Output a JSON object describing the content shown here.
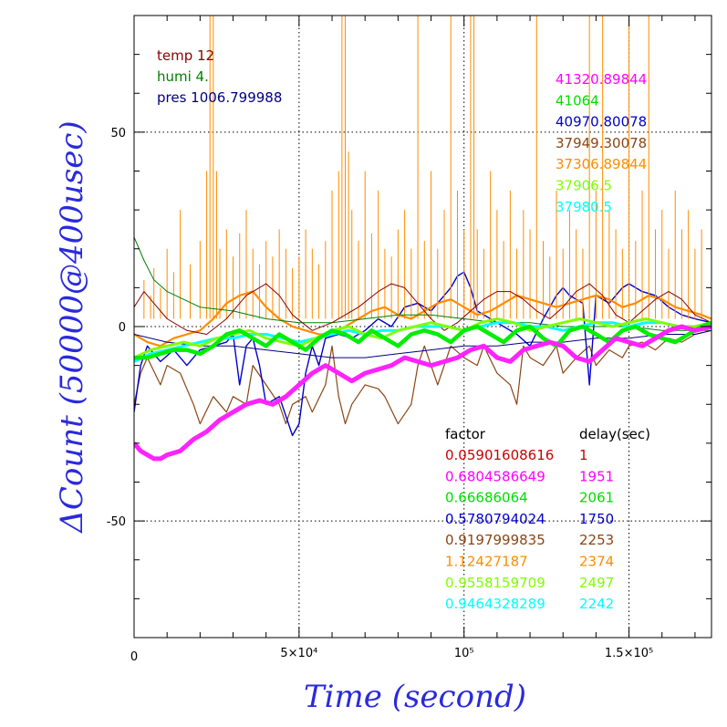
{
  "chart_data": {
    "type": "line",
    "xlabel": "Time (second)",
    "ylabel": "ΔCount (50000@400usec)",
    "xlim": [
      0,
      175000
    ],
    "ylim": [
      -80,
      80
    ],
    "grid": true,
    "x_ticks": [
      {
        "value": 0,
        "label": "0"
      },
      {
        "value": 50000,
        "label": "5×10⁴"
      },
      {
        "value": 100000,
        "label": "10⁵"
      },
      {
        "value": 150000,
        "label": "1.5×10⁵"
      }
    ],
    "y_ticks": [
      {
        "value": -50,
        "label": "-50"
      },
      {
        "value": 0,
        "label": "0"
      },
      {
        "value": 50,
        "label": "50"
      }
    ],
    "env_legend": [
      {
        "text": "temp 12",
        "color": "#8b0000"
      },
      {
        "text": "humi 4.",
        "color": "#008000"
      },
      {
        "text": "pres 1006.799988",
        "color": "#000080"
      }
    ],
    "count_legend": [
      {
        "text": "41320.89844",
        "color": "#ff00ff"
      },
      {
        "text": "41064",
        "color": "#00dd00"
      },
      {
        "text": "40970.80078",
        "color": "#0000cc"
      },
      {
        "text": "37949.30078",
        "color": "#8b4513"
      },
      {
        "text": "37306.89844",
        "color": "#ff8c00"
      },
      {
        "text": "37906.5",
        "color": "#7fff00"
      },
      {
        "text": "37980.5",
        "color": "#00ffff"
      }
    ],
    "factor_table": {
      "header_factor": "factor",
      "header_delay": "delay(sec)",
      "rows": [
        {
          "factor": "0.05901608616",
          "delay": "1",
          "color": "#cc0000"
        },
        {
          "factor": "0.6804586649",
          "delay": "1951",
          "color": "#ff00ff"
        },
        {
          "factor": "0.66686064",
          "delay": "2061",
          "color": "#00dd00"
        },
        {
          "factor": "0.5780794024",
          "delay": "1750",
          "color": "#0000cc"
        },
        {
          "factor": "0.9197999835",
          "delay": "2253",
          "color": "#8b4513"
        },
        {
          "factor": "1.12427187",
          "delay": "2374",
          "color": "#ff8c00"
        },
        {
          "factor": "0.9558159709",
          "delay": "2497",
          "color": "#7fff00"
        },
        {
          "factor": "0.9464328289",
          "delay": "2242",
          "color": "#00ffff"
        }
      ]
    },
    "series": [
      {
        "color": "#8b4513",
        "width": 1.2,
        "x": [
          0,
          2000,
          4000,
          8000,
          10000,
          14000,
          18000,
          20000,
          24000,
          28000,
          30000,
          34000,
          36000,
          40000,
          44000,
          46000,
          48000,
          52000,
          54000,
          58000,
          60000,
          62000,
          64000,
          66000,
          70000,
          74000,
          76000,
          80000,
          84000,
          86000,
          88000,
          92000,
          96000,
          100000,
          104000,
          106000,
          110000,
          114000,
          116000,
          118000,
          120000,
          124000,
          128000,
          130000,
          134000,
          138000,
          140000,
          144000,
          148000,
          150000,
          154000,
          158000,
          162000,
          166000,
          170000,
          175000
        ],
        "y": [
          -20,
          -12,
          -8,
          -15,
          -10,
          -12,
          -20,
          -25,
          -18,
          -22,
          -18,
          -20,
          -10,
          -15,
          -20,
          -25,
          -20,
          -18,
          -22,
          -15,
          -5,
          -18,
          -25,
          -20,
          -15,
          -16,
          -18,
          -25,
          -20,
          -10,
          -5,
          -15,
          -5,
          -8,
          -10,
          -5,
          -12,
          -15,
          -20,
          -5,
          -8,
          -10,
          -5,
          -12,
          -8,
          -5,
          -10,
          -6,
          -8,
          -5,
          -4,
          -6,
          -3,
          -4,
          -2,
          -1
        ]
      },
      {
        "color": "#0000cc",
        "width": 1.4,
        "x": [
          0,
          2000,
          4000,
          8000,
          12000,
          16000,
          20000,
          24000,
          28000,
          30000,
          32000,
          34000,
          36000,
          38000,
          40000,
          44000,
          48000,
          50000,
          52000,
          54000,
          56000,
          58000,
          62000,
          66000,
          70000,
          74000,
          78000,
          82000,
          86000,
          90000,
          94000,
          96000,
          98000,
          100000,
          102000,
          104000,
          108000,
          112000,
          116000,
          120000,
          124000,
          126000,
          128000,
          130000,
          132000,
          134000,
          136000,
          138000,
          140000,
          144000,
          148000,
          150000,
          154000,
          158000,
          162000,
          166000,
          170000,
          175000
        ],
        "y": [
          -22,
          -10,
          -5,
          -9,
          -6,
          -10,
          -6,
          -5,
          -4,
          -2,
          -15,
          -5,
          -3,
          -10,
          -20,
          -18,
          -28,
          -25,
          -12,
          -5,
          -10,
          -3,
          -2,
          -3,
          -1,
          2,
          0,
          5,
          6,
          4,
          8,
          10,
          13,
          14,
          10,
          4,
          2,
          0,
          -2,
          -5,
          2,
          5,
          8,
          10,
          8,
          7,
          6,
          -15,
          8,
          6,
          10,
          11,
          9,
          8,
          5,
          3,
          2,
          1
        ]
      },
      {
        "color": "#ff8c00",
        "width": 2.2,
        "x": [
          0,
          4000,
          8000,
          12000,
          16000,
          20000,
          24000,
          28000,
          32000,
          36000,
          40000,
          44000,
          48000,
          52000,
          56000,
          60000,
          64000,
          68000,
          72000,
          76000,
          80000,
          84000,
          88000,
          92000,
          96000,
          100000,
          104000,
          108000,
          112000,
          116000,
          120000,
          124000,
          128000,
          132000,
          136000,
          140000,
          144000,
          148000,
          152000,
          156000,
          160000,
          164000,
          168000,
          172000,
          175000
        ],
        "y": [
          -2,
          -4,
          -5,
          -3,
          -2,
          -1,
          2,
          6,
          8,
          9,
          5,
          2,
          0,
          -1,
          -2,
          -2,
          0,
          2,
          4,
          5,
          3,
          2,
          4,
          6,
          7,
          5,
          3,
          4,
          6,
          8,
          7,
          6,
          5,
          6,
          7,
          8,
          7,
          5,
          6,
          8,
          7,
          5,
          4,
          3,
          2
        ]
      },
      {
        "color": "#ff8c00",
        "width": 1.0,
        "style": "spikes",
        "x": [
          3000,
          5000,
          6000,
          8000,
          10000,
          12000,
          14000,
          17000,
          20000,
          22000,
          23000,
          24000,
          25000,
          26000,
          28000,
          30000,
          32000,
          34000,
          36000,
          38000,
          40000,
          42000,
          44000,
          46000,
          48000,
          50000,
          52000,
          54000,
          56000,
          58000,
          60000,
          62000,
          63000,
          64000,
          65000,
          66000,
          68000,
          70000,
          72000,
          74000,
          76000,
          78000,
          80000,
          82000,
          84000,
          86000,
          88000,
          90000,
          92000,
          94000,
          96000,
          98000,
          100000,
          102000,
          103000,
          104000,
          106000,
          108000,
          110000,
          112000,
          114000,
          116000,
          118000,
          120000,
          122000,
          124000,
          126000,
          128000,
          130000,
          132000,
          134000,
          136000,
          138000,
          140000,
          142000,
          144000,
          146000,
          148000,
          150000,
          152000,
          154000,
          156000,
          158000,
          160000,
          162000,
          164000,
          166000,
          168000,
          170000,
          172000
        ],
        "y": [
          12,
          8,
          15,
          10,
          20,
          14,
          30,
          16,
          22,
          40,
          80,
          80,
          40,
          20,
          25,
          18,
          24,
          30,
          20,
          16,
          22,
          18,
          25,
          20,
          15,
          18,
          25,
          20,
          16,
          22,
          35,
          40,
          80,
          80,
          45,
          30,
          22,
          40,
          24,
          35,
          20,
          18,
          25,
          30,
          20,
          80,
          22,
          40,
          20,
          30,
          80,
          35,
          25,
          80,
          80,
          25,
          20,
          40,
          30,
          22,
          35,
          20,
          30,
          25,
          80,
          22,
          18,
          35,
          20,
          30,
          25,
          20,
          80,
          35,
          80,
          30,
          25,
          20,
          80,
          22,
          35,
          80,
          25,
          30,
          20,
          35,
          25,
          30,
          20,
          25
        ]
      },
      {
        "color": "#008000",
        "width": 1.0,
        "x": [
          0,
          3000,
          6000,
          10000,
          15000,
          20000,
          30000,
          40000,
          50000,
          60000,
          70000,
          80000,
          90000,
          100000,
          110000,
          120000,
          130000,
          140000,
          150000,
          160000,
          170000,
          175000
        ],
        "y": [
          23,
          17,
          12,
          9,
          7,
          5,
          4,
          2,
          1,
          1,
          2,
          3,
          3,
          2,
          1,
          1,
          0,
          0,
          0,
          -1,
          -1,
          -1
        ]
      },
      {
        "color": "#8b0000",
        "width": 1.0,
        "x": [
          0,
          3000,
          6000,
          10000,
          16000,
          22000,
          28000,
          34000,
          40000,
          44000,
          48000,
          54000,
          60000,
          68000,
          74000,
          78000,
          82000,
          86000,
          90000,
          94000,
          98000,
          102000,
          106000,
          110000,
          114000,
          118000,
          122000,
          126000,
          130000,
          134000,
          138000,
          142000,
          146000,
          150000,
          154000,
          158000,
          162000,
          166000,
          170000,
          175000
        ],
        "y": [
          5,
          9,
          6,
          2,
          -1,
          -2,
          2,
          8,
          11,
          8,
          3,
          -1,
          1,
          5,
          9,
          11,
          10,
          6,
          2,
          -1,
          1,
          4,
          7,
          9,
          9,
          7,
          4,
          2,
          5,
          9,
          11,
          8,
          3,
          1,
          4,
          7,
          9,
          7,
          3,
          1
        ]
      },
      {
        "color": "#000080",
        "width": 1.0,
        "x": [
          0,
          10000,
          20000,
          30000,
          40000,
          50000,
          60000,
          70000,
          80000,
          90000,
          100000,
          110000,
          120000,
          130000,
          140000,
          150000,
          160000,
          170000,
          175000
        ],
        "y": [
          -2,
          -4,
          -5,
          -5,
          -6,
          -7,
          -8,
          -8,
          -7,
          -6,
          -5,
          -5,
          -4,
          -4,
          -3,
          -3,
          -2,
          -2,
          -1
        ]
      },
      {
        "color": "#00ffff",
        "width": 3.0,
        "x": [
          0,
          5000,
          10000,
          15000,
          20000,
          25000,
          30000,
          35000,
          40000,
          45000,
          50000,
          55000,
          60000,
          65000,
          70000,
          75000,
          80000,
          85000,
          90000,
          95000,
          100000,
          105000,
          110000,
          115000,
          120000,
          125000,
          130000,
          135000,
          140000,
          145000,
          150000,
          155000,
          160000,
          165000,
          170000,
          175000
        ],
        "y": [
          -9,
          -7,
          -6,
          -5,
          -4,
          -3,
          -3,
          -2,
          -2,
          -3,
          -4,
          -3,
          -2,
          -1,
          -2,
          -1,
          -1,
          0,
          0,
          0,
          -1,
          0,
          1,
          1,
          0,
          0,
          -1,
          0,
          1,
          1,
          0,
          1,
          1,
          0,
          0,
          1
        ]
      },
      {
        "color": "#7fff00",
        "width": 3.0,
        "x": [
          0,
          5000,
          10000,
          15000,
          20000,
          25000,
          30000,
          35000,
          40000,
          45000,
          50000,
          55000,
          60000,
          65000,
          70000,
          75000,
          80000,
          85000,
          90000,
          95000,
          100000,
          105000,
          110000,
          115000,
          120000,
          125000,
          130000,
          135000,
          140000,
          145000,
          150000,
          155000,
          160000,
          165000,
          170000,
          175000
        ],
        "y": [
          -8,
          -6,
          -5,
          -4,
          -5,
          -3,
          -2,
          -1,
          -3,
          -4,
          -5,
          -3,
          -1,
          0,
          -2,
          -3,
          -1,
          0,
          1,
          0,
          -1,
          1,
          2,
          1,
          -1,
          0,
          1,
          2,
          1,
          0,
          1,
          2,
          1,
          0,
          0,
          1
        ]
      },
      {
        "color": "#00ee00",
        "width": 4.5,
        "x": [
          0,
          4000,
          8000,
          12000,
          16000,
          20000,
          24000,
          28000,
          32000,
          36000,
          40000,
          44000,
          48000,
          52000,
          56000,
          60000,
          64000,
          68000,
          72000,
          76000,
          80000,
          84000,
          88000,
          92000,
          96000,
          100000,
          104000,
          108000,
          112000,
          116000,
          120000,
          124000,
          128000,
          132000,
          136000,
          140000,
          144000,
          148000,
          152000,
          156000,
          160000,
          164000,
          168000,
          172000,
          175000
        ],
        "y": [
          -8,
          -8,
          -7,
          -6,
          -6,
          -7,
          -5,
          -2,
          -1,
          -3,
          -5,
          -2,
          -4,
          -6,
          -3,
          -1,
          -2,
          -4,
          -1,
          -3,
          -5,
          -2,
          -1,
          -2,
          -4,
          -1,
          0,
          -2,
          -4,
          -1,
          0,
          -3,
          -5,
          -1,
          0,
          -2,
          -4,
          -1,
          0,
          -2,
          -3,
          -4,
          -2,
          0,
          1
        ]
      },
      {
        "color": "#ff22ff",
        "width": 5.0,
        "x": [
          0,
          2000,
          4000,
          6000,
          8000,
          10000,
          14000,
          18000,
          22000,
          26000,
          30000,
          34000,
          38000,
          42000,
          46000,
          50000,
          54000,
          58000,
          62000,
          66000,
          70000,
          74000,
          78000,
          82000,
          86000,
          90000,
          94000,
          98000,
          102000,
          106000,
          110000,
          114000,
          118000,
          122000,
          126000,
          130000,
          134000,
          138000,
          142000,
          146000,
          150000,
          154000,
          158000,
          162000,
          166000,
          170000,
          175000
        ],
        "y": [
          -30,
          -32,
          -33,
          -34,
          -34,
          -33,
          -32,
          -29,
          -27,
          -24,
          -22,
          -20,
          -19,
          -20,
          -18,
          -15,
          -12,
          -10,
          -12,
          -14,
          -12,
          -11,
          -10,
          -8,
          -9,
          -10,
          -9,
          -8,
          -6,
          -5,
          -8,
          -9,
          -6,
          -5,
          -4,
          -5,
          -8,
          -9,
          -6,
          -3,
          -4,
          -5,
          -3,
          -1,
          0,
          -1,
          0
        ]
      }
    ]
  }
}
